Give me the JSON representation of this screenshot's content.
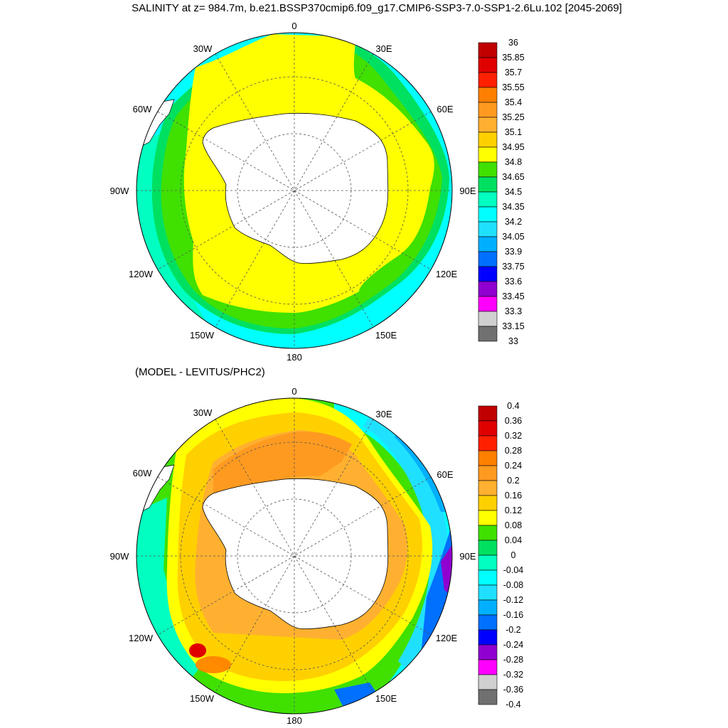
{
  "title": "SALINITY at z= 984.7m, b.e21.BSSP370cmip6.f09_g17.CMIP6-SSP3-7.0-SSP1-2.6Lu.102 [2045-2069]",
  "subtitle": "(MODEL - LEVITUS/PHC2)",
  "map_labels": {
    "lon_0": "0",
    "lon_30e": "30E",
    "lon_60e": "60E",
    "lon_90e": "90E",
    "lon_120e": "120E",
    "lon_150e": "150E",
    "lon_180": "180",
    "lon_150w": "150W",
    "lon_120w": "120W",
    "lon_90w": "90W",
    "lon_60w": "60W",
    "lon_30w": "30W"
  },
  "colorbar_top": {
    "labels": [
      "36",
      "35.85",
      "35.7",
      "35.55",
      "35.4",
      "35.25",
      "35.1",
      "34.95",
      "34.8",
      "34.65",
      "34.5",
      "34.35",
      "34.2",
      "34.05",
      "33.9",
      "33.75",
      "33.6",
      "33.45",
      "33.3",
      "33.15",
      "33"
    ],
    "colors": [
      "#c00000",
      "#e00000",
      "#ff2000",
      "#ff8000",
      "#ff9a20",
      "#ffb030",
      "#ffd000",
      "#ffff00",
      "#40e000",
      "#00e060",
      "#00ffc0",
      "#00ffff",
      "#20e0ff",
      "#00b0ff",
      "#0070ff",
      "#0000ff",
      "#9000d0",
      "#ff00ff",
      "#d0d0d0",
      "#707070"
    ]
  },
  "colorbar_bottom": {
    "labels": [
      "0.4",
      "0.36",
      "0.32",
      "0.28",
      "0.24",
      "0.2",
      "0.16",
      "0.12",
      "0.08",
      "0.04",
      "0",
      "-0.04",
      "-0.08",
      "-0.12",
      "-0.16",
      "-0.2",
      "-0.24",
      "-0.28",
      "-0.32",
      "-0.36",
      "-0.4"
    ],
    "colors": [
      "#c00000",
      "#e00000",
      "#ff2000",
      "#ff8000",
      "#ff9a20",
      "#ffb030",
      "#ffd000",
      "#ffff00",
      "#40e000",
      "#00e060",
      "#00ffc0",
      "#00ffff",
      "#20e0ff",
      "#00b0ff",
      "#0070ff",
      "#0000ff",
      "#9000d0",
      "#ff00ff",
      "#d0d0d0",
      "#707070"
    ]
  }
}
